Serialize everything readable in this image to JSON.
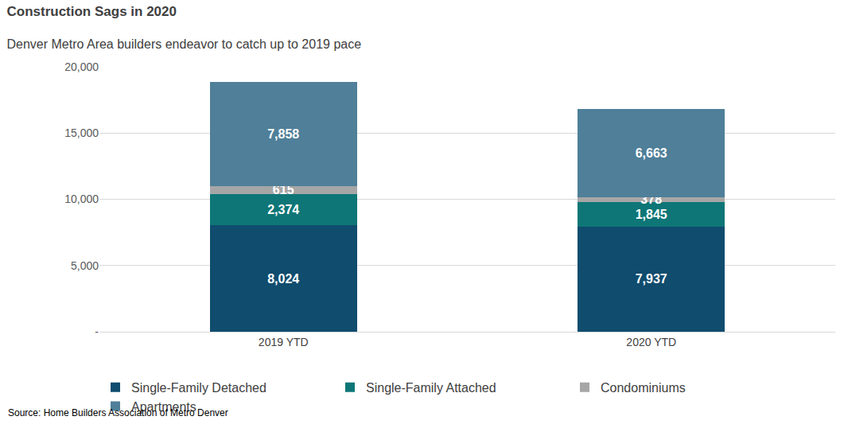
{
  "chart_data": {
    "type": "bar",
    "title": "Construction Sags in 2020",
    "subtitle": "Denver Metro Area builders endeavor to catch up to 2019 pace",
    "annotations": [
      "Source: Home Builders Association of Metro Denver"
    ],
    "categories": [
      "2019 YTD",
      "2020 YTD"
    ],
    "stacked": true,
    "data_labels": true,
    "grid": true,
    "legend": "bottom",
    "ylim": [
      0,
      20000
    ],
    "yticks": [
      {
        "value": 0,
        "label": "-"
      },
      {
        "value": 5000,
        "label": "5,000"
      },
      {
        "value": 10000,
        "label": "10,000"
      },
      {
        "value": 15000,
        "label": "15,000"
      },
      {
        "value": 20000,
        "label": "20,000"
      }
    ],
    "series": [
      {
        "name": "Single-Family Detached",
        "color": "#0f4c6e",
        "values": [
          8024,
          7937
        ],
        "value_labels": [
          "8,024",
          "7,937"
        ]
      },
      {
        "name": "Single-Family Attached",
        "color": "#0e7677",
        "values": [
          2374,
          1845
        ],
        "value_labels": [
          "2,374",
          "1,845"
        ]
      },
      {
        "name": "Condominiums",
        "color": "#a6a6a6",
        "values": [
          615,
          378
        ]
      },
      {
        "name": "Apartments",
        "color": "#4f7f99",
        "values": [
          7858,
          6663
        ],
        "value_labels": [
          "7,858",
          "6,663"
        ]
      }
    ]
  }
}
